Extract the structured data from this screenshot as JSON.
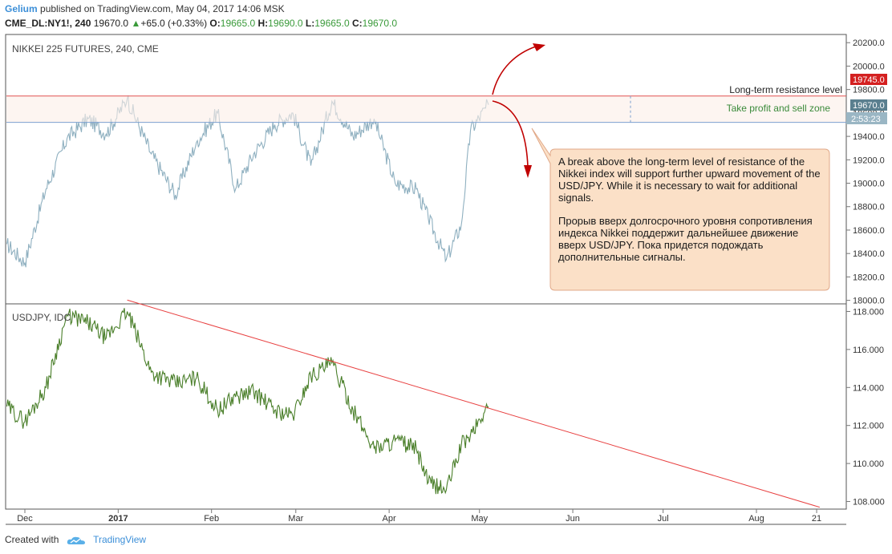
{
  "header": {
    "user": "Gelium",
    "published": "published on TradingView.com, May 04, 2017 14:06 MSK",
    "symbol": "CME_DL:NY1!, 240",
    "last": "19670.0",
    "change": "+65.0 (+0.33%)",
    "o_label": "O:",
    "o_value": "19665.0",
    "h_label": "H:",
    "h_value": "19690.0",
    "l_label": "L:",
    "l_value": "19665.0",
    "c_label": "C:",
    "c_value": "19670.0"
  },
  "footer": {
    "created_with": "Created with",
    "brand": "TradingView"
  },
  "chart_data": [
    {
      "type": "line",
      "title": "NIKKEI 225 FUTURES, 240, CME",
      "color": "#8fb0c0",
      "x_ticks": [
        "Dec",
        "2017",
        "Feb",
        "Mar",
        "Apr",
        "May",
        "Jun",
        "Jul",
        "Aug",
        "21"
      ],
      "y_ticks": [
        "20200.0",
        "20000.0",
        "19800.0",
        "19600.0",
        "19400.0",
        "19200.0",
        "19000.0",
        "18800.0",
        "18600.0",
        "18400.0",
        "18200.0",
        "18000.0"
      ],
      "ylim": [
        17970,
        20270
      ],
      "x": [
        "2016-11-25",
        "2016-12-01",
        "2016-12-08",
        "2016-12-15",
        "2016-12-22",
        "2016-12-28",
        "2017-01-04",
        "2017-01-12",
        "2017-01-20",
        "2017-01-27",
        "2017-02-03",
        "2017-02-09",
        "2017-02-15",
        "2017-02-22",
        "2017-02-28",
        "2017-03-06",
        "2017-03-13",
        "2017-03-20",
        "2017-03-27",
        "2017-04-03",
        "2017-04-10",
        "2017-04-14",
        "2017-04-20",
        "2017-04-25",
        "2017-04-28",
        "2017-05-04"
      ],
      "values": [
        18480,
        18320,
        18950,
        19380,
        19550,
        19420,
        19720,
        19250,
        18900,
        19350,
        19600,
        18950,
        19250,
        19500,
        19600,
        19150,
        19700,
        19400,
        19550,
        19000,
        18950,
        18700,
        18350,
        18650,
        19450,
        19670
      ],
      "annotations": {
        "resistance_label": "Long-term resistance level",
        "resistance_value": "19745.0",
        "zone_label": "Take profit and sell zone",
        "zone_bottom": 19520,
        "current_value": "19670.0",
        "countdown": "2:53:23",
        "note_en": "A break above the long-term level of resistance of the Nikkei index will support further upward movement of the USD/JPY. While it is necessary to wait for additional signals.",
        "note_ru": "Прорыв вверх долгосрочного уровня сопротивления индекса Nikkei поддержит дальнейшее движение вверх USD/JPY. Пока придется подождать дополнительные сигналы."
      }
    },
    {
      "type": "line",
      "title": "USDJPY, IDC",
      "color": "#4a7f2a",
      "y_ticks": [
        "118.000",
        "116.000",
        "114.000",
        "112.000",
        "110.000",
        "108.000"
      ],
      "ylim": [
        107.6,
        118.4
      ],
      "x": [
        "2016-11-25",
        "2016-12-01",
        "2016-12-08",
        "2016-12-15",
        "2016-12-22",
        "2016-12-28",
        "2017-01-04",
        "2017-01-12",
        "2017-01-20",
        "2017-01-27",
        "2017-02-03",
        "2017-02-09",
        "2017-02-15",
        "2017-02-22",
        "2017-02-28",
        "2017-03-06",
        "2017-03-13",
        "2017-03-20",
        "2017-03-27",
        "2017-04-03",
        "2017-04-10",
        "2017-04-14",
        "2017-04-20",
        "2017-04-25",
        "2017-04-28",
        "2017-05-04"
      ],
      "values": [
        113.0,
        112.2,
        114.0,
        117.8,
        117.4,
        116.6,
        118.0,
        114.8,
        114.2,
        114.5,
        112.8,
        113.5,
        113.8,
        112.8,
        112.5,
        114.6,
        115.3,
        112.8,
        110.8,
        111.2,
        110.8,
        109.0,
        108.6,
        111.0,
        111.5,
        113.0
      ],
      "trendline": {
        "from": [
          "2017-01-04",
          118.6
        ],
        "to": [
          "2017-08-22",
          107.7
        ]
      }
    }
  ]
}
